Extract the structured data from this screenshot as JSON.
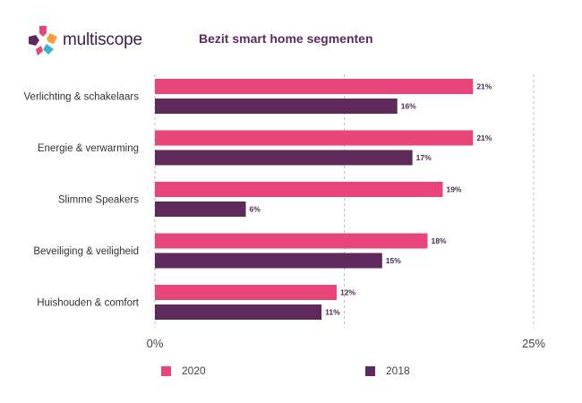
{
  "brand": {
    "name": "multiscope",
    "logo_icon": "multiscope-logo-icon"
  },
  "chart_data": {
    "type": "bar",
    "orientation": "horizontal",
    "title": "Bezit smart home segmenten",
    "categories": [
      "Verlichting & schakelaars",
      "Energie & verwarming",
      "Slimme Speakers",
      "Beveiliging & veiligheid",
      "Huishouden & comfort"
    ],
    "series": [
      {
        "name": "2020",
        "color": "#e8457a",
        "values": [
          21,
          21,
          19,
          18,
          12
        ]
      },
      {
        "name": "2018",
        "color": "#5e2a5c",
        "values": [
          16,
          17,
          6,
          15,
          11
        ]
      }
    ],
    "value_suffix": "%",
    "xlim": [
      0,
      25
    ],
    "x_ticks": [
      "0%",
      "25%"
    ],
    "grid": "dashed-vertical",
    "legend": "bottom"
  }
}
